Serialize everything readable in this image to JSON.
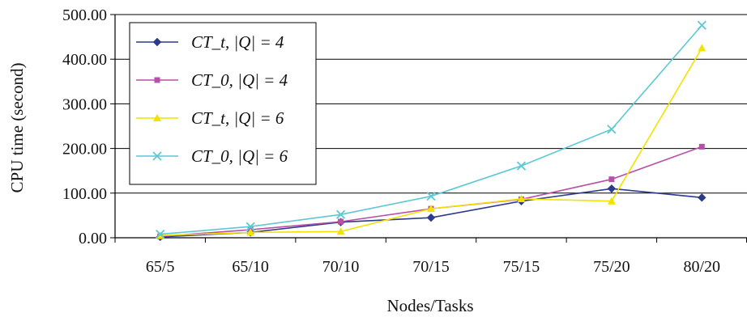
{
  "chart_data": {
    "type": "line",
    "title": "",
    "xlabel": "Nodes/Tasks",
    "ylabel": "CPU time (second)",
    "categories": [
      "65/5",
      "65/10",
      "70/10",
      "70/15",
      "75/15",
      "75/20",
      "80/20"
    ],
    "ylim": [
      0,
      500
    ],
    "yticks": [
      "0.00",
      "100.00",
      "200.00",
      "300.00",
      "400.00",
      "500.00"
    ],
    "grid": "horizontal",
    "legend_position": "top-left",
    "series": [
      {
        "name": "CT_t, |Q| = 4",
        "color": "#2b3a8c",
        "marker": "diamond",
        "values": [
          2,
          12,
          35,
          45,
          82,
          110,
          90
        ]
      },
      {
        "name": "CT_0, |Q| = 4",
        "color": "#b84fa8",
        "marker": "square",
        "values": [
          3,
          18,
          36,
          65,
          86,
          131,
          204
        ]
      },
      {
        "name": "CT_t, |Q| = 6",
        "color": "#f2e200",
        "marker": "triangle",
        "values": [
          5,
          12,
          14,
          65,
          87,
          82,
          425
        ]
      },
      {
        "name": "CT_0, |Q| = 6",
        "color": "#5cc8d4",
        "marker": "x",
        "values": [
          8,
          25,
          52,
          93,
          161,
          243,
          476
        ]
      }
    ]
  }
}
